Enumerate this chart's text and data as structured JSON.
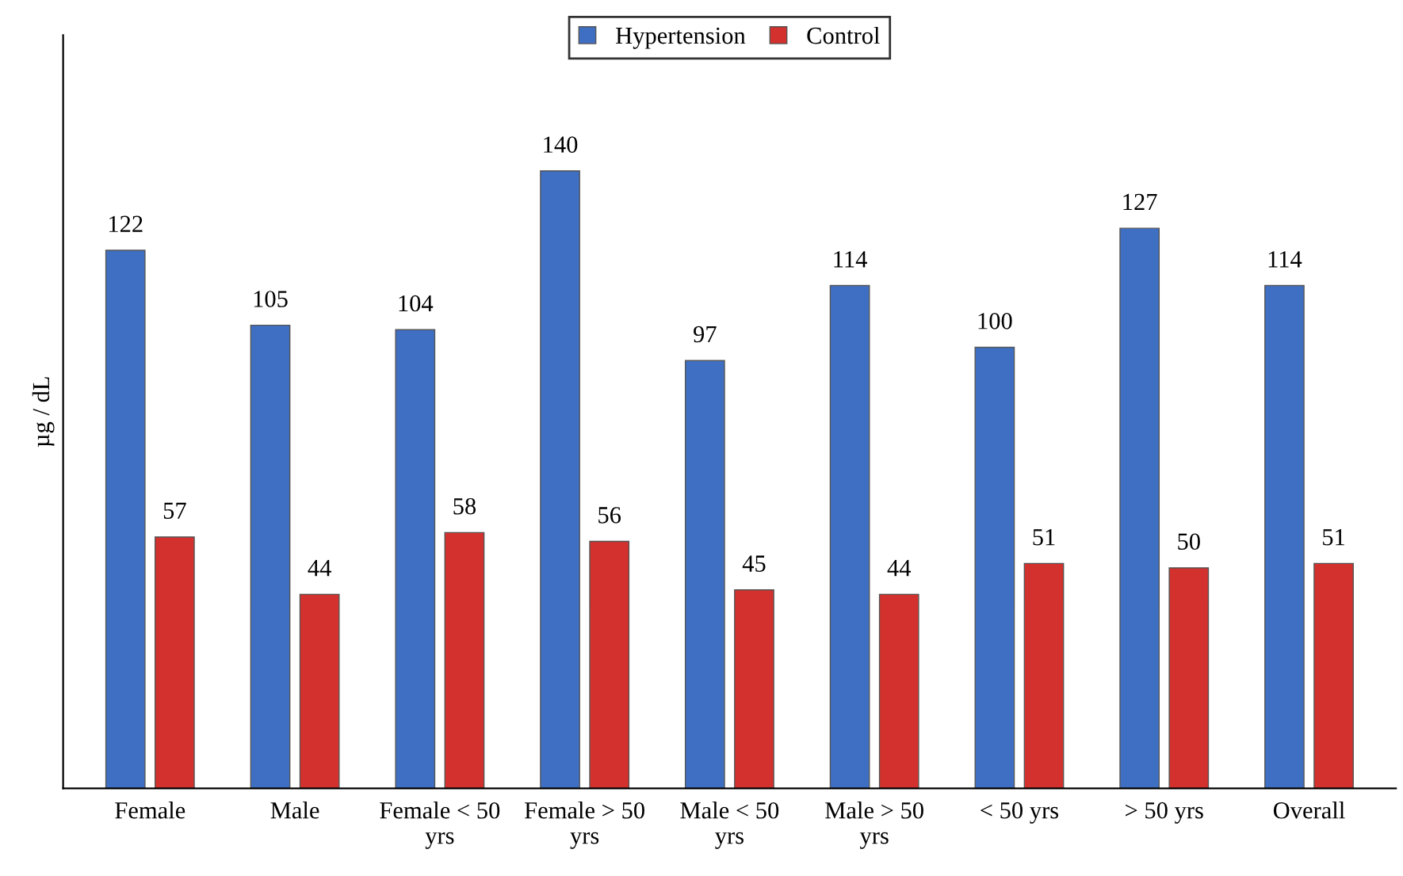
{
  "chart_data": {
    "type": "bar",
    "ylabel": "µg / dL",
    "categories": [
      "Female",
      "Male",
      "Female < 50 yrs",
      "Female > 50 yrs",
      "Male < 50 yrs",
      "Male > 50 yrs",
      "< 50 yrs",
      "> 50 yrs",
      "Overall"
    ],
    "series": [
      {
        "name": "Hypertension",
        "color": "#3f6fc2",
        "values": [
          122,
          105,
          104,
          140,
          97,
          114,
          100,
          127,
          114
        ]
      },
      {
        "name": "Control",
        "color": "#d3312d",
        "values": [
          57,
          44,
          58,
          56,
          45,
          44,
          51,
          50,
          51
        ]
      }
    ],
    "data_labels": true,
    "legend": "top",
    "grid": false
  }
}
